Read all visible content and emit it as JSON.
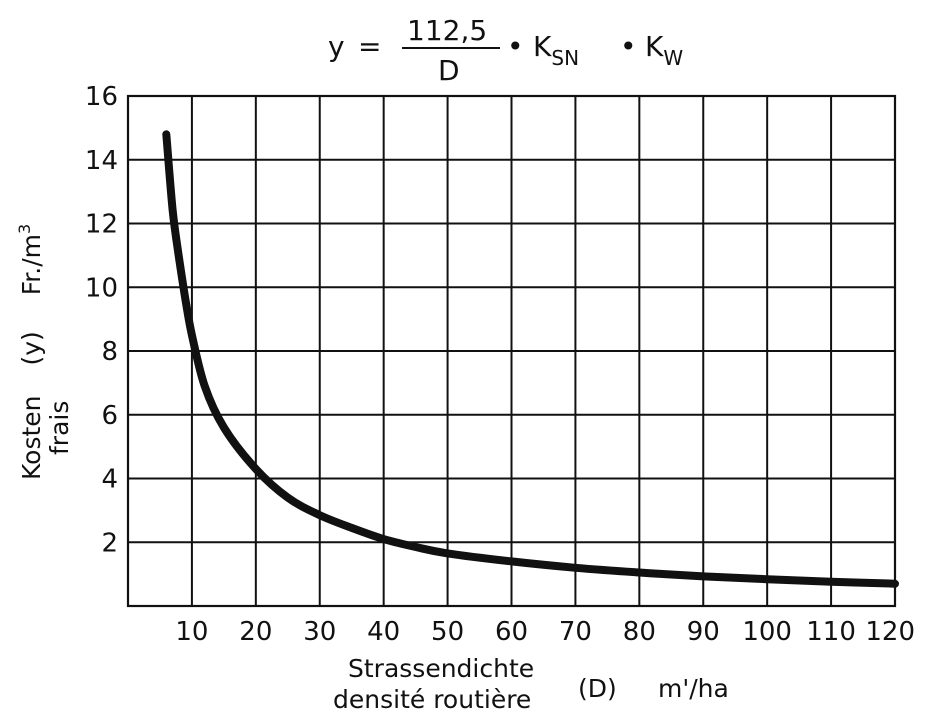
{
  "formula": {
    "lhs": "y",
    "equals": "=",
    "numerator": "112,5",
    "denominator": "D",
    "dot1": "•",
    "factor1": "K",
    "factor1_sub": "SN",
    "dot2": "•",
    "factor2": "K",
    "factor2_sub": "W"
  },
  "y_axis": {
    "line1": [
      "Kosten",
      "(y)",
      "Fr./m",
      "3"
    ],
    "line2": "frais"
  },
  "x_axis": {
    "line1": "Strassendichte",
    "line2": "densité routière",
    "symbol": "(D)",
    "unit": "m'/ha"
  },
  "chart_data": {
    "type": "line",
    "title": "y = 112,5 / D • K_SN • K_W",
    "xlabel": "Strassendichte / densité routière (D) m'/ha",
    "ylabel": "Kosten / frais (y) Fr./m³",
    "xlim": [
      0,
      120
    ],
    "ylim": [
      0,
      16
    ],
    "xticks": [
      10,
      20,
      30,
      40,
      50,
      60,
      70,
      80,
      90,
      100,
      110,
      120
    ],
    "yticks": [
      2,
      4,
      6,
      8,
      10,
      12,
      14,
      16
    ],
    "grid": true,
    "series": [
      {
        "x": [
          6,
          7,
          8,
          9,
          10,
          12,
          15,
          20,
          25,
          30,
          35,
          40,
          45,
          50,
          60,
          70,
          80,
          90,
          100,
          110,
          120
        ],
        "y": [
          14.8,
          12.4,
          10.9,
          9.6,
          8.5,
          6.9,
          5.6,
          4.3,
          3.4,
          2.85,
          2.45,
          2.1,
          1.85,
          1.65,
          1.4,
          1.2,
          1.05,
          0.93,
          0.84,
          0.76,
          0.7
        ]
      }
    ]
  }
}
